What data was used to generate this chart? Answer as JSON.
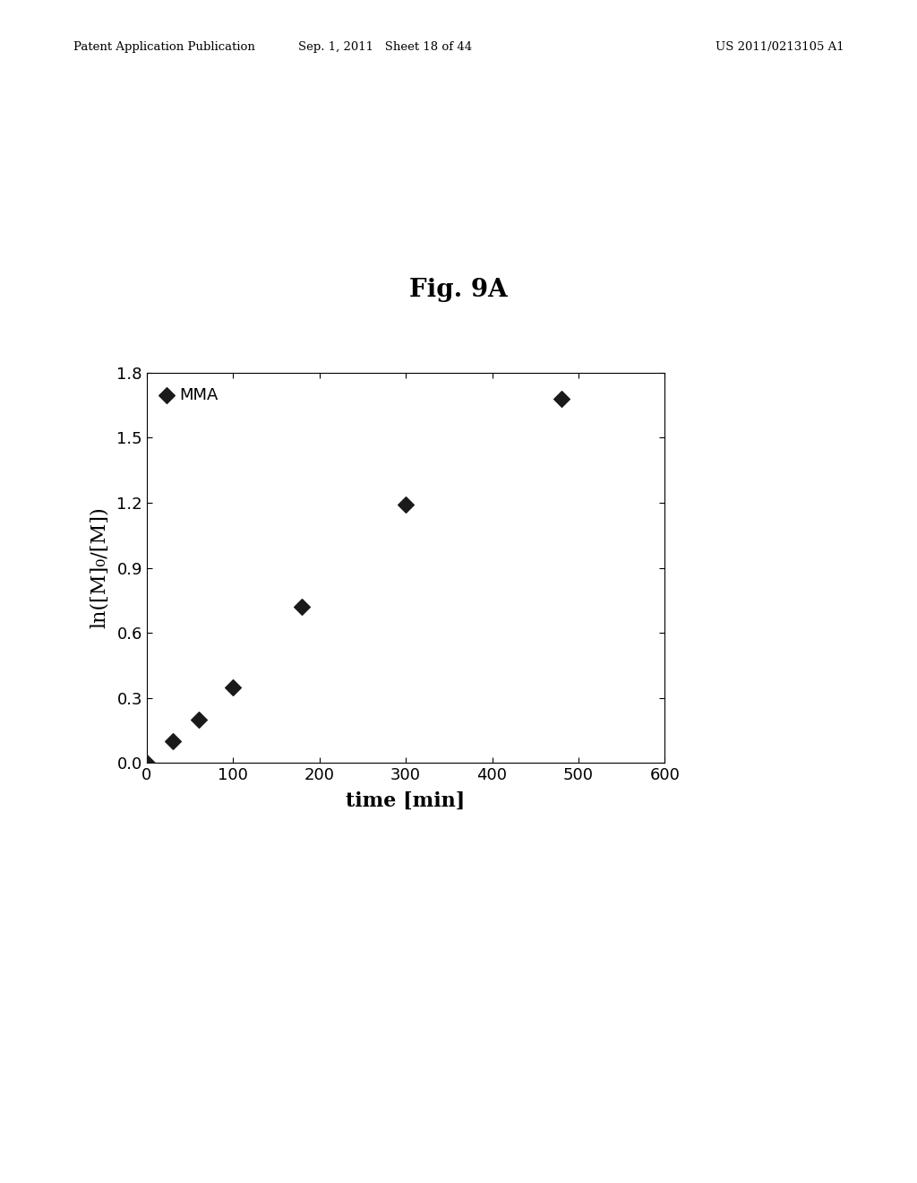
{
  "title": "Fig. 9A",
  "xlabel": "time [min]",
  "ylabel": "ln([M]₀/[M])",
  "x_data": [
    0,
    30,
    60,
    100,
    180,
    300,
    480
  ],
  "y_data": [
    0.0,
    0.1,
    0.2,
    0.35,
    0.72,
    1.19,
    1.68
  ],
  "xlim": [
    0,
    600
  ],
  "ylim": [
    0.0,
    1.8
  ],
  "xticks": [
    0,
    100,
    200,
    300,
    400,
    500,
    600
  ],
  "yticks": [
    0.0,
    0.3,
    0.6,
    0.9,
    1.2,
    1.5,
    1.8
  ],
  "legend_label": "MMA",
  "marker_color": "#1a1a1a",
  "background_color": "#ffffff",
  "header_left": "Patent Application Publication",
  "header_mid": "Sep. 1, 2011   Sheet 18 of 44",
  "header_right": "US 2011/0213105 A1",
  "title_fontsize": 20,
  "axis_label_fontsize": 16,
  "tick_fontsize": 13,
  "legend_fontsize": 13,
  "marker_size": 9
}
